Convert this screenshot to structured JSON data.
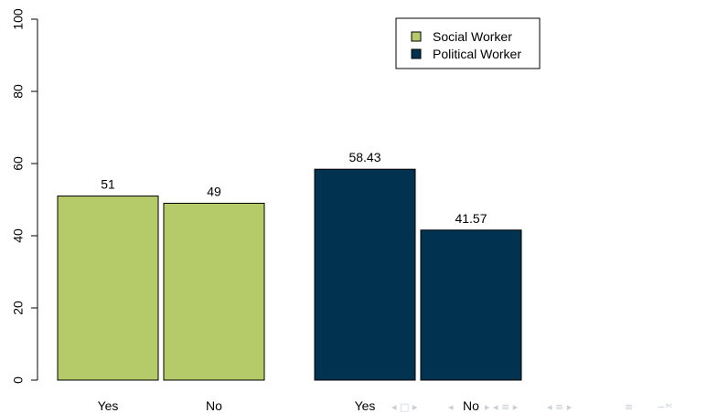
{
  "chart_data": {
    "type": "bar",
    "categories": [
      "Yes",
      "No"
    ],
    "series": [
      {
        "name": "Social Worker",
        "values": [
          51,
          49
        ],
        "labels": [
          "51",
          "49"
        ],
        "color": "#b5cb69"
      },
      {
        "name": "Political Worker",
        "values": [
          58.43,
          41.57
        ],
        "labels": [
          "58.43",
          "41.57"
        ],
        "color": "#01324f"
      }
    ],
    "ylim": [
      0,
      100
    ],
    "yticks": [
      0,
      20,
      40,
      60,
      80,
      100
    ],
    "ytick_labels": [
      "0",
      "20",
      "40",
      "60",
      "80",
      "100"
    ],
    "title": "",
    "xlabel": "",
    "ylabel": "",
    "legend": "top-right",
    "grid": false
  },
  "nav_icons": [
    "prev-slide-icon",
    "prev-frame-icon",
    "prev-section-icon",
    "prev-subsection-icon",
    "align-icon",
    "search-icon"
  ],
  "colors": {
    "nav_icon": "#c9cfd8"
  }
}
